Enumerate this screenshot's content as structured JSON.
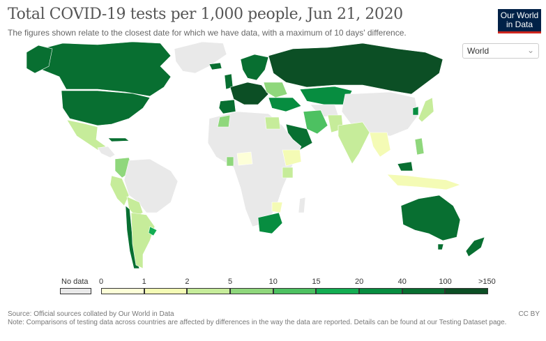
{
  "header": {
    "title": "Total COVID-19 tests per 1,000 people, Jun 21, 2020",
    "subtitle": "The figures shown relate to the closest date for which we have data, with a maximum of 10 days' difference."
  },
  "logo": {
    "line1": "Our World",
    "line2": "in Data"
  },
  "region_select": {
    "value": "World"
  },
  "legend": {
    "no_data_label": "No data",
    "bins": [
      {
        "label": "0",
        "color": "#fdffd8"
      },
      {
        "label": "1",
        "color": "#f4fbb5"
      },
      {
        "label": "2",
        "color": "#c6ec9a"
      },
      {
        "label": "5",
        "color": "#8fd77c"
      },
      {
        "label": "10",
        "color": "#4dc161"
      },
      {
        "label": "15",
        "color": "#13ad52"
      },
      {
        "label": "20",
        "color": "#078d40"
      },
      {
        "label": "40",
        "color": "#086f31"
      },
      {
        "label": "100",
        "color": "#0c4f25"
      }
    ],
    "last_label": ">150",
    "no_data_color": "#e9e9e9"
  },
  "footer": {
    "source": "Source: Official sources collated by Our World in Data",
    "note": "Note: Comparisons of testing data across countries are affected by differences in the way the data are reported. Details can be found at our Testing Dataset page.",
    "license": "CC BY"
  }
}
